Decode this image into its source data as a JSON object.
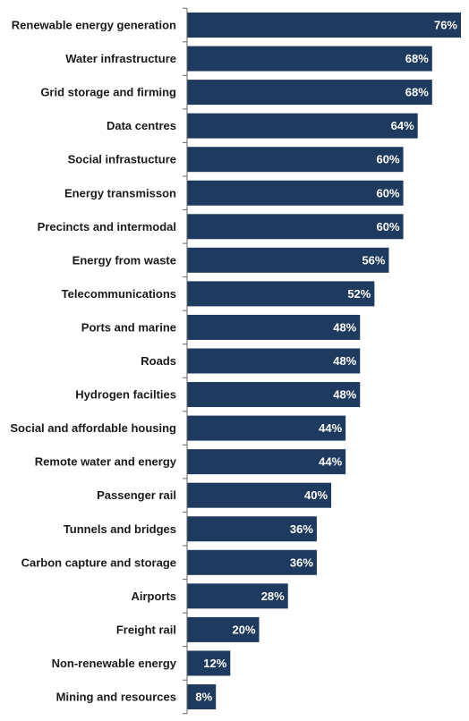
{
  "chart_data": {
    "type": "bar",
    "orientation": "horizontal",
    "title": "",
    "xlabel": "",
    "ylabel": "",
    "xlim": [
      0,
      76
    ],
    "grid": false,
    "legend": "none",
    "bar_color": "#1e3a5f",
    "value_suffix": "%",
    "categories": [
      "Renewable energy generation",
      "Water infrastructure",
      "Grid storage and firming",
      "Data centres",
      "Social infrastucture",
      "Energy transmisson",
      "Precincts and intermodal",
      "Energy from waste",
      "Telecommunications",
      "Ports and marine",
      "Roads",
      "Hydrogen facilties",
      "Social and affordable housing",
      "Remote water and energy",
      "Passenger rail",
      "Tunnels and bridges",
      "Carbon capture and storage",
      "Airports",
      "Freight rail",
      "Non-renewable energy",
      "Mining and resources"
    ],
    "values": [
      76,
      68,
      68,
      64,
      60,
      60,
      60,
      56,
      52,
      48,
      48,
      48,
      44,
      44,
      40,
      36,
      36,
      28,
      20,
      12,
      8
    ],
    "value_labels": [
      "76%",
      "68%",
      "68%",
      "64%",
      "60%",
      "60%",
      "60%",
      "56%",
      "52%",
      "48%",
      "48%",
      "48%",
      "44%",
      "44%",
      "40%",
      "36%",
      "36%",
      "28%",
      "20%",
      "12%",
      "8%"
    ]
  }
}
